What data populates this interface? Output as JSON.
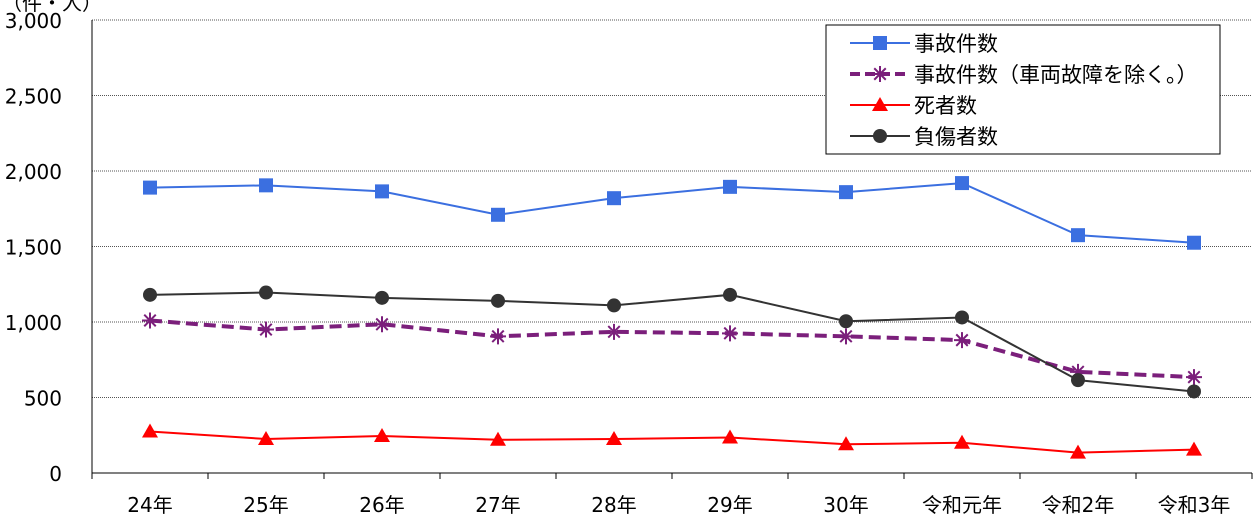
{
  "chart_data": {
    "type": "line",
    "unit_label": "（件・人）",
    "categories": [
      "24年",
      "25年",
      "26年",
      "27年",
      "28年",
      "29年",
      "30年",
      "令和元年",
      "令和2年",
      "令和3年"
    ],
    "ylim": [
      0,
      3000
    ],
    "y_ticks": [
      "0",
      "500",
      "1,000",
      "1,500",
      "2,000",
      "2,500",
      "3,000"
    ],
    "grid": true,
    "legend_position": "top-right",
    "series": [
      {
        "name": "事故件数",
        "color": "#3b6fe0",
        "marker": "square",
        "dash": false,
        "values": [
          1890,
          1905,
          1865,
          1710,
          1820,
          1895,
          1860,
          1920,
          1575,
          1525
        ]
      },
      {
        "name": "事故件数（車両故障を除く。）",
        "color": "#7b1f7b",
        "marker": "asterisk",
        "dash": true,
        "values": [
          1010,
          950,
          985,
          905,
          935,
          925,
          905,
          880,
          670,
          635
        ]
      },
      {
        "name": "死者数",
        "color": "#ff0000",
        "marker": "triangle",
        "dash": false,
        "values": [
          275,
          225,
          245,
          220,
          225,
          235,
          190,
          200,
          135,
          155
        ]
      },
      {
        "name": "負傷者数",
        "color": "#333333",
        "marker": "circle",
        "dash": false,
        "values": [
          1180,
          1195,
          1160,
          1140,
          1110,
          1180,
          1005,
          1030,
          615,
          540
        ]
      }
    ]
  }
}
